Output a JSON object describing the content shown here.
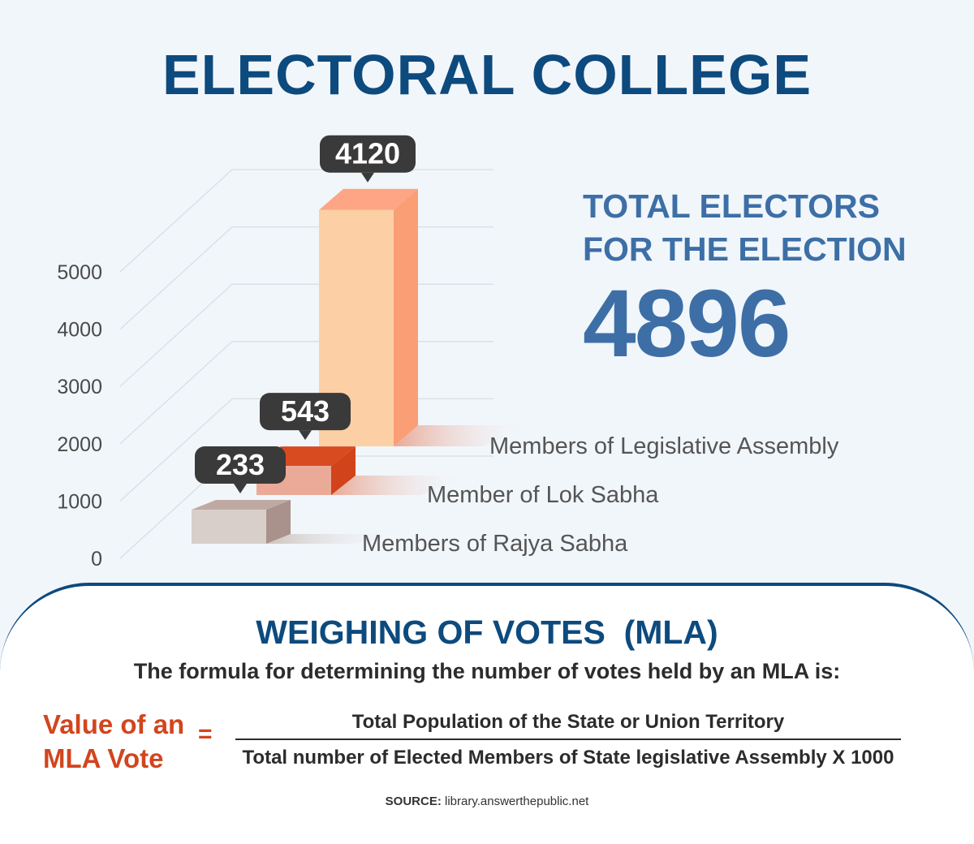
{
  "title": "ELECTORAL COLLEGE",
  "summary": {
    "line1": "TOTAL ELECTORS",
    "line2": "FOR THE ELECTION",
    "total": "4896"
  },
  "chart_data": {
    "type": "bar",
    "categories": [
      "Members of Rajya Sabha",
      "Member of Lok Sabha",
      "Members of Legislative Assembly"
    ],
    "values": [
      233,
      543,
      4120
    ],
    "data_labels": [
      "233",
      "543",
      "4120"
    ],
    "y_ticks": [
      "0",
      "1000",
      "2000",
      "3000",
      "4000",
      "5000"
    ],
    "ylim": [
      0,
      5000
    ],
    "grid": true,
    "style": "3d",
    "colors": {
      "front": [
        "#d8cfca",
        "#eaaa97",
        "#fcd0a4"
      ],
      "side": [
        "#a9928b",
        "#d0431b",
        "#f99e75"
      ],
      "top": [
        "#bfaaa1",
        "#d84a20",
        "#fda584"
      ],
      "label_bubble": "#3a3a3a"
    }
  },
  "formula": {
    "heading": "WEIGHING OF VOTES  (MLA)",
    "intro": "The formula for determining the number of votes held by an MLA is:",
    "lhs_line1": "Value of an",
    "lhs_line2": "MLA Vote",
    "equals": "=",
    "numerator": "Total Population of the State or Union Territory",
    "denominator": "Total number of Elected Members of State legislative Assembly X 1000"
  },
  "source": {
    "label": "SOURCE:",
    "text": "library.answerthepublic.net"
  }
}
